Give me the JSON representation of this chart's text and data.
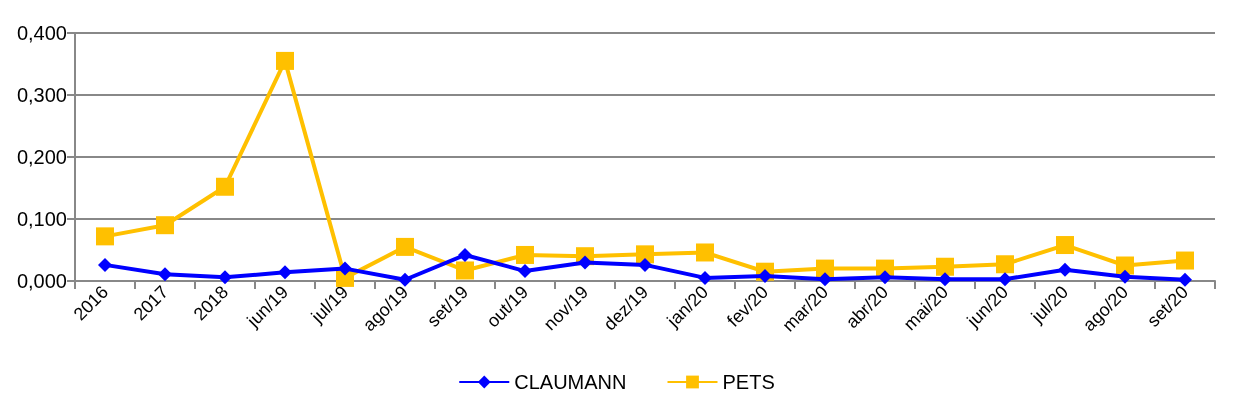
{
  "chart_data": {
    "type": "line",
    "categories": [
      "2016",
      "2017",
      "2018",
      "jun/19",
      "jul/19",
      "ago/19",
      "set/19",
      "out/19",
      "nov/19",
      "dez/19",
      "jan/20",
      "fev/20",
      "mar/20",
      "abr/20",
      "mai/20",
      "jun/20",
      "jul/20",
      "ago/20",
      "set/20"
    ],
    "series": [
      {
        "name": "CLAUMANN",
        "color": "#0000ff",
        "marker": "diamond",
        "values": [
          0.026,
          0.011,
          0.006,
          0.014,
          0.02,
          0.002,
          0.042,
          0.016,
          0.03,
          0.026,
          0.005,
          0.008,
          0.003,
          0.006,
          0.003,
          0.003,
          0.018,
          0.007,
          0.002
        ]
      },
      {
        "name": "PETS",
        "color": "#ffc000",
        "marker": "square",
        "values": [
          0.072,
          0.09,
          0.152,
          0.355,
          0.005,
          0.055,
          0.017,
          0.042,
          0.04,
          0.043,
          0.046,
          0.015,
          0.02,
          0.02,
          0.023,
          0.027,
          0.058,
          0.025,
          0.033
        ]
      }
    ],
    "ylim": [
      0,
      0.4
    ],
    "yticks": [
      {
        "value": 0,
        "label": "0,000"
      },
      {
        "value": 0.1,
        "label": "0,100"
      },
      {
        "value": 0.2,
        "label": "0,200"
      },
      {
        "value": 0.3,
        "label": "0,300"
      },
      {
        "value": 0.4,
        "label": "0,400"
      }
    ],
    "grid": "y",
    "legend": "bottom",
    "line_style": "solid"
  }
}
